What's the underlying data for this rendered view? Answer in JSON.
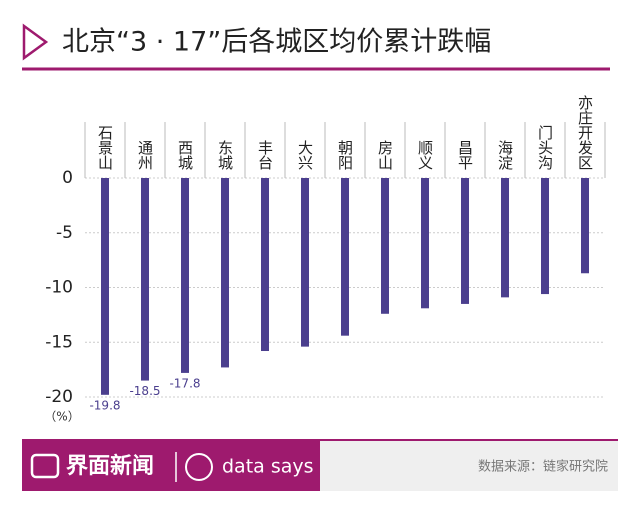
{
  "chart_data": {
    "type": "bar",
    "title": "北京“3 · 17”后各城区均价累计跌幅",
    "unit_label": "（%）",
    "categories": [
      "石景山",
      "通州",
      "西城",
      "东城",
      "丰台",
      "大兴",
      "朝阳",
      "房山",
      "顺义",
      "昌平",
      "海淀",
      "门头沟",
      "亦庄开发区"
    ],
    "values": [
      -19.8,
      -18.5,
      -17.8,
      -17.3,
      -15.8,
      -15.4,
      -14.4,
      -12.4,
      -11.9,
      -11.5,
      -10.9,
      -10.6,
      -8.7
    ],
    "value_labels": [
      "-19.8",
      "-18.5",
      "-17.8",
      null,
      null,
      null,
      null,
      null,
      null,
      null,
      null,
      null,
      null
    ],
    "color": "#4b3f8e",
    "ylim": [
      -20,
      0
    ],
    "yticks": [
      0,
      -5,
      -10,
      -15,
      -20
    ],
    "grid": true,
    "footer": {
      "brand": "界面新闻",
      "sub_brand": "data says",
      "source": "数据来源：链家研究院"
    }
  }
}
